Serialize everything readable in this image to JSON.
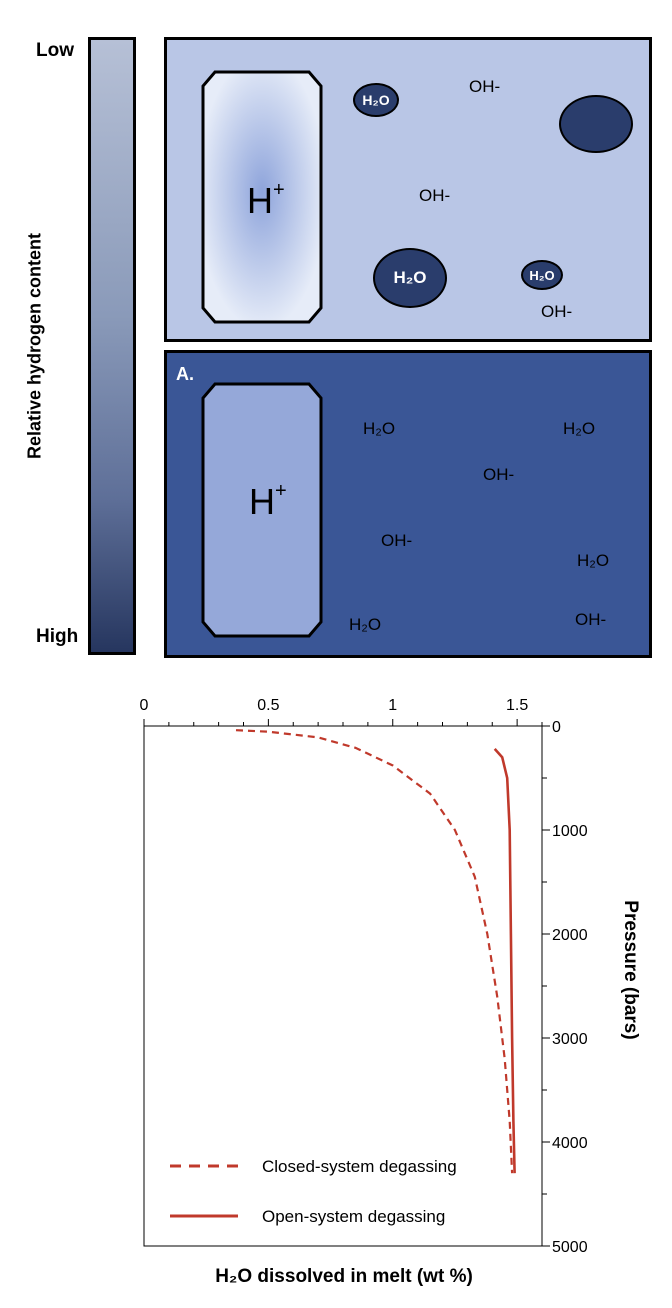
{
  "diagram": {
    "gradient": {
      "low_label": "Low",
      "high_label": "High",
      "axis_label": "Relative hydrogen content"
    },
    "panel_top": {
      "h_label": "H",
      "h_sup": "+",
      "species": [
        {
          "text": "H₂O",
          "kind": "bubble"
        },
        {
          "text": "OH-",
          "kind": "text"
        },
        {
          "text": "",
          "kind": "bubble"
        },
        {
          "text": "OH-",
          "kind": "text"
        },
        {
          "text": "H₂O",
          "kind": "bubble"
        },
        {
          "text": "H₂O",
          "kind": "bubble"
        },
        {
          "text": "OH-",
          "kind": "text"
        }
      ]
    },
    "panel_bottom": {
      "panel_label": "A.",
      "h_label": "H",
      "h_sup": "+",
      "species": [
        {
          "text": "H₂O"
        },
        {
          "text": "H₂O"
        },
        {
          "text": "OH-"
        },
        {
          "text": "OH-"
        },
        {
          "text": "H₂O"
        },
        {
          "text": "H₂O"
        },
        {
          "text": "OH-"
        }
      ]
    },
    "colors": {
      "top_panel": "#b9c6e6",
      "bottom_panel": "#3a5696",
      "bubble": "#2a3d6c",
      "curve": "#c0392b"
    }
  },
  "chart_data": {
    "type": "line",
    "xlabel": "H₂O dissolved in melt (wt %)",
    "ylabel": "Pressure (bars)",
    "xlim": [
      0,
      1.6
    ],
    "ylim": [
      5000,
      0
    ],
    "x_ticks": [
      "0",
      "0.5",
      "1",
      "1.5"
    ],
    "y_ticks": [
      "0",
      "1000",
      "2000",
      "3000",
      "4000",
      "5000"
    ],
    "x_axis_position": "top",
    "y_axis_position": "right",
    "legend_position": "bottom-left",
    "series": [
      {
        "name": "Closed-system degassing",
        "style": "dashed",
        "color": "#c0392b",
        "points": [
          [
            0.37,
            40
          ],
          [
            0.5,
            55
          ],
          [
            0.7,
            110
          ],
          [
            0.85,
            210
          ],
          [
            1.0,
            380
          ],
          [
            1.15,
            650
          ],
          [
            1.25,
            1000
          ],
          [
            1.33,
            1450
          ],
          [
            1.38,
            2000
          ],
          [
            1.42,
            2600
          ],
          [
            1.45,
            3200
          ],
          [
            1.47,
            3800
          ],
          [
            1.48,
            4300
          ]
        ]
      },
      {
        "name": "Open-system degassing",
        "style": "solid",
        "color": "#c0392b",
        "points": [
          [
            1.41,
            220
          ],
          [
            1.44,
            300
          ],
          [
            1.46,
            500
          ],
          [
            1.47,
            1000
          ],
          [
            1.475,
            2000
          ],
          [
            1.48,
            3000
          ],
          [
            1.485,
            3800
          ],
          [
            1.49,
            4300
          ]
        ]
      }
    ]
  }
}
